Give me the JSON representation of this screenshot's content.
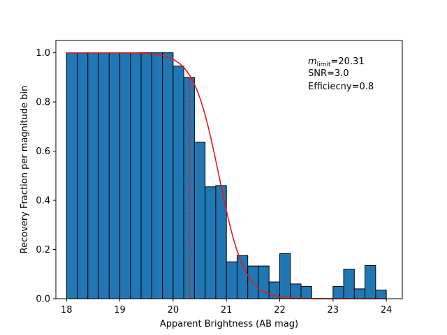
{
  "chart_data": {
    "type": "bar",
    "title": "",
    "xlabel": "Apparent Brightness (AB mag)",
    "ylabel": "Recovery Fraction per magnitude bin",
    "xlim": [
      17.8,
      24.3
    ],
    "ylim": [
      0,
      1.05
    ],
    "xticks": [
      18,
      19,
      20,
      21,
      22,
      23,
      24
    ],
    "yticks": [
      0.0,
      0.2,
      0.4,
      0.6,
      0.8,
      1.0
    ],
    "bin_width": 0.2,
    "bin_edges_start": 18.0,
    "values": [
      1.0,
      1.0,
      1.0,
      1.0,
      1.0,
      1.0,
      1.0,
      1.0,
      1.0,
      1.0,
      0.946,
      0.9,
      0.637,
      0.455,
      0.46,
      0.15,
      0.176,
      0.133,
      0.133,
      0.068,
      0.183,
      0.06,
      0.05,
      0.0,
      0.0,
      0.05,
      0.12,
      0.04,
      0.135,
      0.035
    ],
    "bar_color": "#1f77b4",
    "bar_edge_color": "#000000",
    "fit_curve": {
      "color": "#e31a1c",
      "type": "logistic",
      "center": 20.31,
      "efficiency": 0.8
    },
    "limit_line": {
      "x": 20.31,
      "color": "#e31a1c",
      "style": "dashed"
    },
    "annotations": {
      "m_symbol": "m",
      "m_sub": "limit",
      "m_value": "=20.31",
      "snr": "SNR=3.0",
      "efficiency": "Efficiecny=0.8"
    }
  }
}
